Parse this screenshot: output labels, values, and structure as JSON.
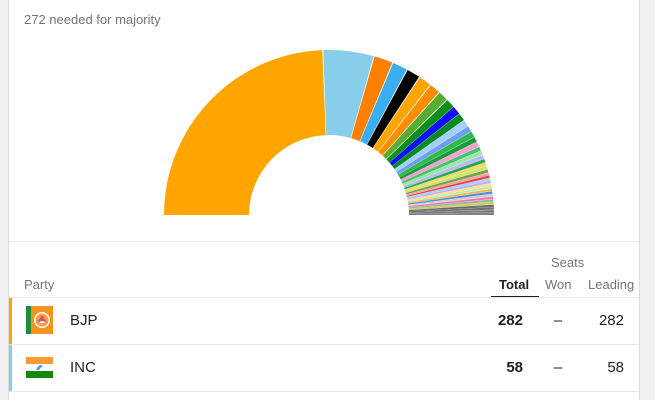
{
  "majority_text": "272 needed for majority",
  "seat_chart": {
    "segments": [
      {
        "party": "BJP",
        "seats": 282,
        "color": "#ffa500"
      },
      {
        "party": "INC",
        "seats": 58,
        "color": "#87ceeb"
      },
      {
        "seats": 22,
        "color": "#ff7f00"
      },
      {
        "seats": 18,
        "color": "#3aaef0"
      },
      {
        "seats": 16,
        "color": "#000000"
      },
      {
        "seats": 15,
        "color": "#ffa500"
      },
      {
        "seats": 13,
        "color": "#ff8c00"
      },
      {
        "seats": 12,
        "color": "#56ad31"
      },
      {
        "seats": 11,
        "color": "#0e8f17"
      },
      {
        "seats": 10,
        "color": "#0f13f3"
      },
      {
        "seats": 9,
        "color": "#0b8a22"
      },
      {
        "seats": 8,
        "color": "#a3cfff"
      },
      {
        "seats": 7,
        "color": "#6ea0f0"
      },
      {
        "seats": 7,
        "color": "#30b84a"
      },
      {
        "seats": 6,
        "color": "#1a9c3e"
      },
      {
        "seats": 6,
        "color": "#f2a0d0"
      },
      {
        "seats": 5,
        "color": "#46c36c"
      },
      {
        "seats": 5,
        "color": "#98e8a0"
      },
      {
        "seats": 5,
        "color": "#b8b8ff"
      },
      {
        "seats": 4,
        "color": "#28a845"
      },
      {
        "seats": 4,
        "color": "#f5d66b"
      },
      {
        "seats": 4,
        "color": "#c6e86b"
      },
      {
        "seats": 4,
        "color": "#7aa04c"
      },
      {
        "seats": 3,
        "color": "#ff9aa8"
      },
      {
        "seats": 3,
        "color": "#e94040"
      },
      {
        "seats": 3,
        "color": "#9ad7ff"
      },
      {
        "seats": 3,
        "color": "#c7a6ff"
      },
      {
        "seats": 3,
        "color": "#ffe28a"
      },
      {
        "seats": 3,
        "color": "#b2f0b0"
      },
      {
        "seats": 3,
        "color": "#ffb84d"
      },
      {
        "seats": 3,
        "color": "#4a90e2"
      },
      {
        "seats": 3,
        "color": "#d0d0d0"
      },
      {
        "seats": 3,
        "color": "#ff6fb5"
      },
      {
        "seats": 3,
        "color": "#8fbc8f"
      },
      {
        "seats": 3,
        "color": "#cccc66"
      },
      {
        "seats": 3,
        "color": "#6b6b6b"
      },
      {
        "seats": 3,
        "color": "#707070"
      },
      {
        "seats": 3,
        "color": "#787878"
      },
      {
        "seats": 3,
        "color": "#808080"
      }
    ]
  },
  "table": {
    "seats_group_label": "Seats",
    "col_party": "Party",
    "col_total": "Total",
    "col_won": "Won",
    "col_leading": "Leading",
    "rows": [
      {
        "name": "BJP",
        "total": "282",
        "won": "–",
        "leading": "282",
        "bar_color": "#ffa500",
        "flag": "bjp-flag"
      },
      {
        "name": "INC",
        "total": "58",
        "won": "–",
        "leading": "58",
        "bar_color": "#87ceeb",
        "flag": "inc-flag"
      }
    ]
  }
}
